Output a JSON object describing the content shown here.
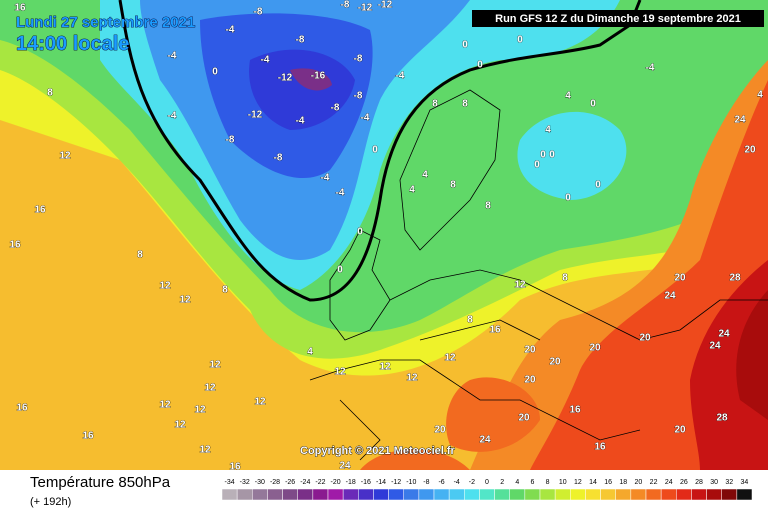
{
  "header": {
    "date": "Lundi 27 septembre 2021",
    "time": "14:00 locale",
    "run": "Run GFS 12 Z du Dimanche 19 septembre 2021"
  },
  "copyright": "Copyright © 2021 Meteociel.fr",
  "footer": {
    "title": "Température 850hPa",
    "lead": "(+ 192h)"
  },
  "legend": {
    "values": [
      -34,
      -32,
      -30,
      -28,
      -26,
      -24,
      -22,
      -20,
      -18,
      -16,
      -14,
      -12,
      -10,
      -8,
      -6,
      -4,
      -2,
      0,
      2,
      4,
      6,
      8,
      10,
      12,
      14,
      16,
      18,
      20,
      22,
      24,
      26,
      28,
      30,
      32,
      34
    ],
    "colors": [
      "#b9b0b8",
      "#a696a6",
      "#94789a",
      "#8a6090",
      "#7e4a88",
      "#7a2f88",
      "#8a1a90",
      "#a01aa8",
      "#6a2ab8",
      "#4830c8",
      "#2f3ad8",
      "#2f5ae6",
      "#3a7ae8",
      "#3f98ef",
      "#46b2f2",
      "#4bcaf2",
      "#4ee0ee",
      "#52e6c8",
      "#55e09a",
      "#60d868",
      "#80dc50",
      "#a8e640",
      "#d0ee30",
      "#eef22a",
      "#f7e030",
      "#f6c832",
      "#f5a82c",
      "#f48a26",
      "#f26a20",
      "#ee4a1c",
      "#e32a18",
      "#c81414",
      "#a80c0c",
      "#800808",
      "#101010"
    ]
  },
  "map": {
    "labels": [
      16,
      -4,
      -8,
      -8,
      -8,
      -12,
      -12,
      0,
      -4,
      -12,
      -16,
      -8,
      -8,
      -8,
      -12,
      -4,
      -8,
      -8,
      -4,
      -4,
      0,
      -4,
      -4,
      -4,
      -4,
      8,
      12,
      16,
      16,
      8,
      12,
      12,
      8,
      12,
      12,
      12,
      12,
      12,
      12,
      16,
      12,
      16,
      16,
      12,
      12,
      12,
      12,
      8,
      16,
      20,
      20,
      20,
      20,
      20,
      20,
      24,
      28,
      24,
      24,
      28,
      20,
      20,
      24,
      20,
      16,
      16,
      24,
      8,
      8,
      4,
      0,
      4,
      0,
      0,
      0,
      0,
      0,
      -4,
      24,
      20,
      4,
      4,
      4,
      8,
      8,
      8,
      12,
      4,
      0,
      0,
      0,
      0,
      0
    ]
  }
}
